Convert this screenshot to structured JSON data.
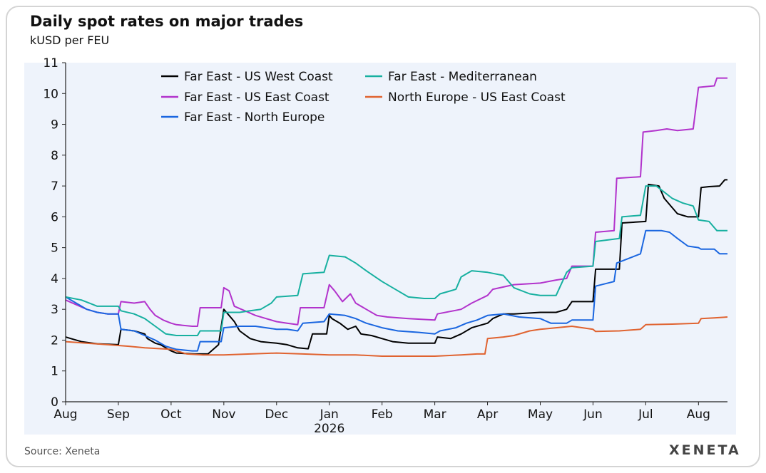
{
  "header": {
    "title": "Daily spot rates on major trades",
    "subtitle": "kUSD per FEU"
  },
  "footer": {
    "source": "Source: Xeneta",
    "logo": "XENETA"
  },
  "chart_data": {
    "type": "line",
    "title": "Daily spot rates on major trades",
    "ylabel": "kUSD per FEU",
    "ylim": [
      0,
      11
    ],
    "yticks": [
      0,
      1,
      2,
      3,
      4,
      5,
      6,
      7,
      8,
      9,
      10,
      11
    ],
    "x_range": [
      0,
      12.55
    ],
    "x_ticks": [
      {
        "label": "Aug",
        "pos": 0
      },
      {
        "label": "Sep",
        "pos": 1
      },
      {
        "label": "Oct",
        "pos": 2
      },
      {
        "label": "Nov",
        "pos": 3
      },
      {
        "label": "Dec",
        "pos": 4
      },
      {
        "label": "Jan",
        "pos": 5
      },
      {
        "label": "Feb",
        "pos": 6
      },
      {
        "label": "Mar",
        "pos": 7
      },
      {
        "label": "Apr",
        "pos": 8
      },
      {
        "label": "May",
        "pos": 9
      },
      {
        "label": "Jun",
        "pos": 10
      },
      {
        "label": "Jul",
        "pos": 11
      },
      {
        "label": "Aug",
        "pos": 12
      }
    ],
    "year_label": {
      "label": "2026",
      "pos": 5
    },
    "legend": {
      "placement": "top-left"
    },
    "series": [
      {
        "name": "Far East - US West Coast",
        "color": "#000000",
        "points": [
          [
            0,
            2.1
          ],
          [
            0.1,
            2.05
          ],
          [
            0.3,
            1.95
          ],
          [
            0.6,
            1.88
          ],
          [
            1.0,
            1.85
          ],
          [
            1.05,
            2.35
          ],
          [
            1.3,
            2.3
          ],
          [
            1.5,
            2.2
          ],
          [
            1.55,
            2.05
          ],
          [
            1.7,
            1.9
          ],
          [
            1.8,
            1.85
          ],
          [
            1.9,
            1.75
          ],
          [
            2.0,
            1.65
          ],
          [
            2.1,
            1.58
          ],
          [
            2.45,
            1.55
          ],
          [
            2.7,
            1.55
          ],
          [
            2.9,
            1.85
          ],
          [
            3.0,
            3.0
          ],
          [
            3.1,
            2.8
          ],
          [
            3.2,
            2.6
          ],
          [
            3.3,
            2.3
          ],
          [
            3.5,
            2.05
          ],
          [
            3.7,
            1.95
          ],
          [
            4.0,
            1.9
          ],
          [
            4.2,
            1.85
          ],
          [
            4.4,
            1.75
          ],
          [
            4.6,
            1.72
          ],
          [
            4.68,
            2.2
          ],
          [
            4.95,
            2.2
          ],
          [
            5.0,
            2.8
          ],
          [
            5.05,
            2.7
          ],
          [
            5.2,
            2.55
          ],
          [
            5.35,
            2.35
          ],
          [
            5.5,
            2.45
          ],
          [
            5.6,
            2.2
          ],
          [
            5.8,
            2.15
          ],
          [
            6.0,
            2.05
          ],
          [
            6.2,
            1.95
          ],
          [
            6.5,
            1.9
          ],
          [
            7.0,
            1.9
          ],
          [
            7.05,
            2.1
          ],
          [
            7.3,
            2.05
          ],
          [
            7.5,
            2.2
          ],
          [
            7.7,
            2.4
          ],
          [
            8.0,
            2.55
          ],
          [
            8.1,
            2.7
          ],
          [
            8.3,
            2.85
          ],
          [
            8.5,
            2.85
          ],
          [
            9.0,
            2.9
          ],
          [
            9.3,
            2.9
          ],
          [
            9.5,
            3.0
          ],
          [
            9.6,
            3.25
          ],
          [
            10.0,
            3.25
          ],
          [
            10.05,
            4.3
          ],
          [
            10.5,
            4.3
          ],
          [
            10.55,
            5.8
          ],
          [
            11.0,
            5.85
          ],
          [
            11.05,
            7.05
          ],
          [
            11.25,
            7.0
          ],
          [
            11.35,
            6.6
          ],
          [
            11.5,
            6.3
          ],
          [
            11.6,
            6.1
          ],
          [
            11.8,
            6.0
          ],
          [
            12.0,
            6.0
          ],
          [
            12.05,
            6.95
          ],
          [
            12.2,
            6.98
          ],
          [
            12.4,
            7.0
          ],
          [
            12.5,
            7.2
          ],
          [
            12.55,
            7.2
          ]
        ]
      },
      {
        "name": "Far East - US East Coast",
        "color": "#b233cc",
        "points": [
          [
            0,
            3.3
          ],
          [
            0.2,
            3.15
          ],
          [
            0.4,
            3.0
          ],
          [
            0.6,
            2.9
          ],
          [
            0.8,
            2.85
          ],
          [
            1.0,
            2.85
          ],
          [
            1.05,
            3.25
          ],
          [
            1.3,
            3.2
          ],
          [
            1.5,
            3.25
          ],
          [
            1.6,
            3.0
          ],
          [
            1.7,
            2.8
          ],
          [
            1.85,
            2.65
          ],
          [
            2.0,
            2.55
          ],
          [
            2.1,
            2.5
          ],
          [
            2.4,
            2.45
          ],
          [
            2.5,
            2.45
          ],
          [
            2.55,
            3.05
          ],
          [
            2.95,
            3.05
          ],
          [
            3.0,
            3.7
          ],
          [
            3.1,
            3.6
          ],
          [
            3.2,
            3.1
          ],
          [
            3.4,
            2.95
          ],
          [
            3.6,
            2.8
          ],
          [
            3.8,
            2.7
          ],
          [
            4.0,
            2.6
          ],
          [
            4.2,
            2.55
          ],
          [
            4.4,
            2.5
          ],
          [
            4.45,
            3.05
          ],
          [
            4.9,
            3.05
          ],
          [
            5.0,
            3.8
          ],
          [
            5.1,
            3.6
          ],
          [
            5.25,
            3.25
          ],
          [
            5.4,
            3.5
          ],
          [
            5.5,
            3.2
          ],
          [
            5.7,
            3.0
          ],
          [
            5.9,
            2.8
          ],
          [
            6.1,
            2.75
          ],
          [
            6.5,
            2.7
          ],
          [
            7.0,
            2.65
          ],
          [
            7.05,
            2.85
          ],
          [
            7.5,
            3.0
          ],
          [
            7.7,
            3.2
          ],
          [
            8.0,
            3.45
          ],
          [
            8.1,
            3.65
          ],
          [
            8.5,
            3.8
          ],
          [
            9.0,
            3.85
          ],
          [
            9.3,
            3.95
          ],
          [
            9.5,
            4.0
          ],
          [
            9.6,
            4.4
          ],
          [
            10.0,
            4.4
          ],
          [
            10.05,
            5.5
          ],
          [
            10.4,
            5.55
          ],
          [
            10.45,
            7.25
          ],
          [
            10.9,
            7.3
          ],
          [
            10.95,
            8.75
          ],
          [
            11.2,
            8.8
          ],
          [
            11.4,
            8.85
          ],
          [
            11.6,
            8.8
          ],
          [
            11.9,
            8.85
          ],
          [
            12.0,
            10.2
          ],
          [
            12.3,
            10.25
          ],
          [
            12.35,
            10.5
          ],
          [
            12.55,
            10.5
          ]
        ]
      },
      {
        "name": "Far East  - North Europe",
        "color": "#1a66e0",
        "points": [
          [
            0,
            3.4
          ],
          [
            0.2,
            3.2
          ],
          [
            0.4,
            3.0
          ],
          [
            0.6,
            2.9
          ],
          [
            0.8,
            2.85
          ],
          [
            1.0,
            2.85
          ],
          [
            1.05,
            2.35
          ],
          [
            1.3,
            2.3
          ],
          [
            1.5,
            2.15
          ],
          [
            1.7,
            2.0
          ],
          [
            1.9,
            1.8
          ],
          [
            2.1,
            1.7
          ],
          [
            2.4,
            1.65
          ],
          [
            2.5,
            1.65
          ],
          [
            2.55,
            1.95
          ],
          [
            2.95,
            1.95
          ],
          [
            3.0,
            2.4
          ],
          [
            3.3,
            2.45
          ],
          [
            3.6,
            2.45
          ],
          [
            3.8,
            2.4
          ],
          [
            4.0,
            2.35
          ],
          [
            4.2,
            2.35
          ],
          [
            4.4,
            2.3
          ],
          [
            4.5,
            2.55
          ],
          [
            4.9,
            2.6
          ],
          [
            5.0,
            2.85
          ],
          [
            5.3,
            2.8
          ],
          [
            5.5,
            2.7
          ],
          [
            5.7,
            2.55
          ],
          [
            6.0,
            2.4
          ],
          [
            6.3,
            2.3
          ],
          [
            6.7,
            2.25
          ],
          [
            7.0,
            2.2
          ],
          [
            7.1,
            2.3
          ],
          [
            7.4,
            2.4
          ],
          [
            7.6,
            2.55
          ],
          [
            7.8,
            2.65
          ],
          [
            8.0,
            2.8
          ],
          [
            8.3,
            2.85
          ],
          [
            8.6,
            2.75
          ],
          [
            9.0,
            2.7
          ],
          [
            9.2,
            2.55
          ],
          [
            9.5,
            2.55
          ],
          [
            9.6,
            2.65
          ],
          [
            10.0,
            2.65
          ],
          [
            10.05,
            3.75
          ],
          [
            10.4,
            3.9
          ],
          [
            10.45,
            4.5
          ],
          [
            10.9,
            4.8
          ],
          [
            11.0,
            5.55
          ],
          [
            11.3,
            5.55
          ],
          [
            11.45,
            5.5
          ],
          [
            11.6,
            5.3
          ],
          [
            11.8,
            5.05
          ],
          [
            12.0,
            5.0
          ],
          [
            12.05,
            4.95
          ],
          [
            12.3,
            4.95
          ],
          [
            12.4,
            4.8
          ],
          [
            12.55,
            4.8
          ]
        ]
      },
      {
        "name": "Far East - Mediterranean",
        "color": "#17b0a0",
        "points": [
          [
            0,
            3.4
          ],
          [
            0.3,
            3.3
          ],
          [
            0.6,
            3.1
          ],
          [
            1.0,
            3.1
          ],
          [
            1.05,
            2.95
          ],
          [
            1.3,
            2.85
          ],
          [
            1.5,
            2.7
          ],
          [
            1.7,
            2.45
          ],
          [
            1.9,
            2.2
          ],
          [
            2.1,
            2.15
          ],
          [
            2.5,
            2.15
          ],
          [
            2.55,
            2.3
          ],
          [
            2.95,
            2.3
          ],
          [
            3.0,
            2.9
          ],
          [
            3.3,
            2.9
          ],
          [
            3.5,
            2.95
          ],
          [
            3.7,
            3.0
          ],
          [
            3.9,
            3.2
          ],
          [
            4.0,
            3.4
          ],
          [
            4.4,
            3.45
          ],
          [
            4.5,
            4.15
          ],
          [
            4.9,
            4.2
          ],
          [
            5.0,
            4.75
          ],
          [
            5.3,
            4.7
          ],
          [
            5.5,
            4.5
          ],
          [
            5.7,
            4.25
          ],
          [
            6.0,
            3.9
          ],
          [
            6.3,
            3.6
          ],
          [
            6.5,
            3.4
          ],
          [
            6.8,
            3.35
          ],
          [
            7.0,
            3.35
          ],
          [
            7.1,
            3.5
          ],
          [
            7.4,
            3.65
          ],
          [
            7.5,
            4.05
          ],
          [
            7.7,
            4.25
          ],
          [
            8.0,
            4.2
          ],
          [
            8.3,
            4.1
          ],
          [
            8.5,
            3.7
          ],
          [
            8.8,
            3.5
          ],
          [
            9.0,
            3.45
          ],
          [
            9.3,
            3.45
          ],
          [
            9.5,
            4.2
          ],
          [
            9.6,
            4.35
          ],
          [
            10.0,
            4.4
          ],
          [
            10.05,
            5.2
          ],
          [
            10.5,
            5.3
          ],
          [
            10.55,
            6.0
          ],
          [
            10.9,
            6.05
          ],
          [
            11.0,
            7.0
          ],
          [
            11.2,
            7.0
          ],
          [
            11.35,
            6.8
          ],
          [
            11.5,
            6.6
          ],
          [
            11.7,
            6.45
          ],
          [
            11.9,
            6.35
          ],
          [
            12.0,
            5.9
          ],
          [
            12.2,
            5.85
          ],
          [
            12.35,
            5.55
          ],
          [
            12.55,
            5.55
          ]
        ]
      },
      {
        "name": "North Europe - US East Coast",
        "color": "#e06330",
        "points": [
          [
            0,
            1.95
          ],
          [
            0.4,
            1.9
          ],
          [
            0.8,
            1.85
          ],
          [
            1.2,
            1.8
          ],
          [
            1.5,
            1.75
          ],
          [
            2.0,
            1.7
          ],
          [
            2.3,
            1.55
          ],
          [
            2.6,
            1.52
          ],
          [
            3.0,
            1.52
          ],
          [
            3.5,
            1.55
          ],
          [
            4.0,
            1.58
          ],
          [
            4.5,
            1.55
          ],
          [
            5.0,
            1.52
          ],
          [
            5.5,
            1.52
          ],
          [
            6.0,
            1.48
          ],
          [
            6.5,
            1.48
          ],
          [
            7.0,
            1.48
          ],
          [
            7.5,
            1.52
          ],
          [
            7.8,
            1.55
          ],
          [
            7.95,
            1.55
          ],
          [
            8.0,
            2.05
          ],
          [
            8.3,
            2.1
          ],
          [
            8.5,
            2.15
          ],
          [
            8.8,
            2.3
          ],
          [
            9.0,
            2.35
          ],
          [
            9.3,
            2.4
          ],
          [
            9.6,
            2.45
          ],
          [
            10.0,
            2.35
          ],
          [
            10.05,
            2.28
          ],
          [
            10.5,
            2.3
          ],
          [
            10.9,
            2.35
          ],
          [
            11.0,
            2.5
          ],
          [
            11.5,
            2.52
          ],
          [
            12.0,
            2.55
          ],
          [
            12.05,
            2.7
          ],
          [
            12.3,
            2.72
          ],
          [
            12.55,
            2.75
          ]
        ]
      }
    ]
  }
}
